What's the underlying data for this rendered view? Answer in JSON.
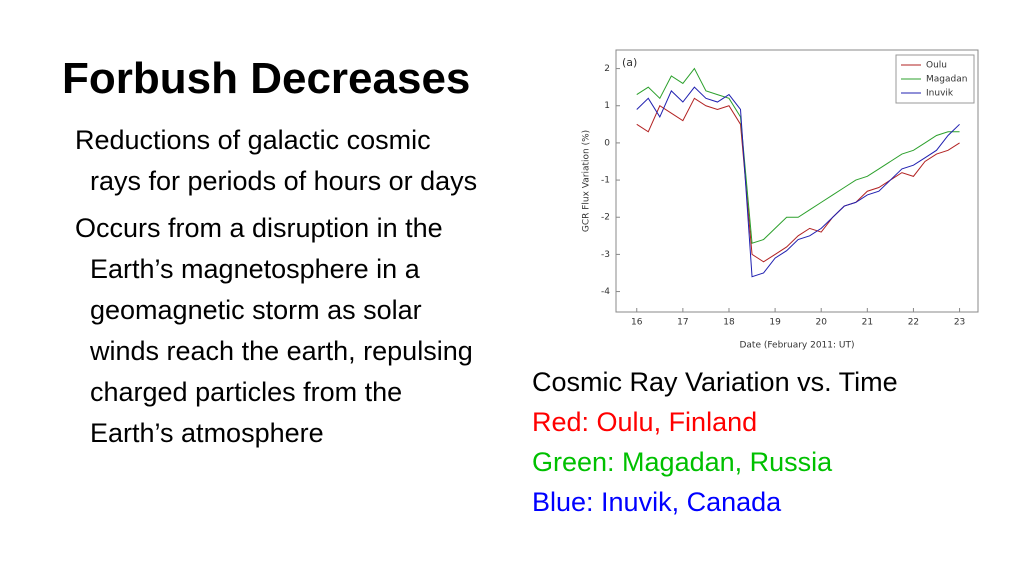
{
  "title": "Forbush Decreases",
  "bullets": [
    "Reductions of galactic cosmic rays for periods of hours or days",
    "Occurs from a disruption in the Earth’s magnetosphere in a geomagnetic storm as solar winds reach the earth, repulsing charged particles from the Earth’s atmosphere"
  ],
  "caption": [
    {
      "text": "Cosmic Ray Variation vs. Time",
      "color": "#000000"
    },
    {
      "text": "Red: Oulu, Finland",
      "color": "#ff0000"
    },
    {
      "text": "Green: Magadan, Russia",
      "color": "#00c000"
    },
    {
      "text": "Blue: Inuvik, Canada",
      "color": "#0000ff"
    }
  ],
  "chart_data": {
    "type": "line",
    "annotation": "(a)",
    "x_label": "Date (February 2011: UT)",
    "y_label": "GCR Flux Variation (%)",
    "x": [
      16,
      16.25,
      16.5,
      16.75,
      17,
      17.25,
      17.5,
      17.75,
      18,
      18.25,
      18.5,
      18.75,
      19,
      19.25,
      19.5,
      19.75,
      20,
      20.25,
      20.5,
      20.75,
      21,
      21.25,
      21.5,
      21.75,
      22,
      22.25,
      22.5,
      22.75,
      23
    ],
    "series": [
      {
        "name": "Oulu",
        "color": "#b22222",
        "values": [
          0.5,
          0.3,
          1.0,
          0.8,
          0.6,
          1.2,
          1.0,
          0.9,
          1.0,
          0.5,
          -3.0,
          -3.2,
          -3.0,
          -2.8,
          -2.5,
          -2.3,
          -2.4,
          -2.0,
          -1.7,
          -1.6,
          -1.3,
          -1.2,
          -1.0,
          -0.8,
          -0.9,
          -0.5,
          -0.3,
          -0.2,
          0.0
        ]
      },
      {
        "name": "Magadan",
        "color": "#2ca02c",
        "values": [
          1.3,
          1.5,
          1.2,
          1.8,
          1.6,
          2.0,
          1.4,
          1.3,
          1.2,
          0.7,
          -2.7,
          -2.6,
          -2.3,
          -2.0,
          -2.0,
          -1.8,
          -1.6,
          -1.4,
          -1.2,
          -1.0,
          -0.9,
          -0.7,
          -0.5,
          -0.3,
          -0.2,
          0.0,
          0.2,
          0.3,
          0.3
        ]
      },
      {
        "name": "Inuvik",
        "color": "#2020b0",
        "values": [
          0.9,
          1.2,
          0.7,
          1.4,
          1.1,
          1.5,
          1.2,
          1.1,
          1.3,
          0.9,
          -3.6,
          -3.5,
          -3.1,
          -2.9,
          -2.6,
          -2.5,
          -2.3,
          -2.0,
          -1.7,
          -1.6,
          -1.4,
          -1.3,
          -1.0,
          -0.7,
          -0.6,
          -0.4,
          -0.2,
          0.2,
          0.5
        ]
      }
    ],
    "xlim": [
      15.55,
      23.4
    ],
    "ylim": [
      -4.55,
      2.5
    ],
    "xticks": [
      16,
      17,
      18,
      19,
      20,
      21,
      22,
      23
    ],
    "yticks": [
      -4,
      -3,
      -2,
      -1,
      0,
      1,
      2
    ],
    "legend": "upper right",
    "grid": false
  }
}
